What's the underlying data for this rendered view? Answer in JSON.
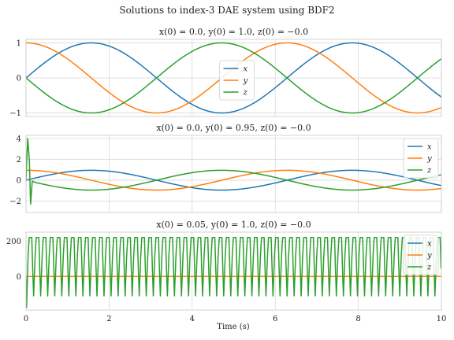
{
  "figure_title": "Solutions to index-3 DAE system using BDF2",
  "xlabel": "Time (s)",
  "colors": {
    "x": "#1f77b4",
    "y": "#ff7f0e",
    "z": "#2ca02c"
  },
  "chart_data": [
    {
      "type": "line",
      "title": "x(0) = 0.0, y(0) = 1.0, z(0) = −0.0",
      "xlim": [
        0,
        10
      ],
      "ylim": [
        -1.1,
        1.1
      ],
      "yticks": [
        -1,
        0,
        1
      ],
      "xticks": [
        0,
        2,
        4,
        6,
        8,
        10
      ],
      "show_xtick_labels": false,
      "grid": true,
      "legend_position": "center",
      "series": [
        {
          "name": "x",
          "kind": "sin",
          "amp": 1
        },
        {
          "name": "y",
          "kind": "cos",
          "amp": 1
        },
        {
          "name": "z",
          "kind": "negsin",
          "amp": 1
        }
      ]
    },
    {
      "type": "line",
      "title": "x(0) = 0.0, y(0) = 0.95, z(0) = −0.0",
      "xlim": [
        0,
        10
      ],
      "ylim": [
        -3.1,
        4.3
      ],
      "yticks": [
        -2,
        0,
        2,
        4
      ],
      "xticks": [
        0,
        2,
        4,
        6,
        8,
        10
      ],
      "show_xtick_labels": false,
      "grid": true,
      "legend_position": "top-right",
      "series": [
        {
          "name": "x",
          "kind": "sin",
          "amp": 0.95
        },
        {
          "name": "y",
          "kind": "cos",
          "amp": 0.95
        },
        {
          "name": "z",
          "kind": "negsin_spike",
          "amp": 0.95,
          "spike": [
            [
              0,
              0
            ],
            [
              0.04,
              4.0
            ],
            [
              0.08,
              2.0
            ],
            [
              0.11,
              -2.3
            ],
            [
              0.15,
              -0.1
            ],
            [
              0.25,
              -0.25
            ]
          ]
        }
      ]
    },
    {
      "type": "line",
      "title": "x(0) = 0.05, y(0) = 1.0, z(0) = −0.0",
      "xlim": [
        0,
        10
      ],
      "ylim": [
        -190,
        250
      ],
      "yticks": [
        0,
        200
      ],
      "xticks": [
        0,
        2,
        4,
        6,
        8,
        10
      ],
      "show_xtick_labels": true,
      "grid": true,
      "legend_position": "top-right",
      "series": [
        {
          "name": "x",
          "kind": "flat",
          "amp": 1
        },
        {
          "name": "y",
          "kind": "flat",
          "amp": 1
        },
        {
          "name": "z",
          "kind": "oscillation",
          "high": 220,
          "low": -110,
          "first_low": -175,
          "period": 0.1695
        }
      ]
    }
  ]
}
